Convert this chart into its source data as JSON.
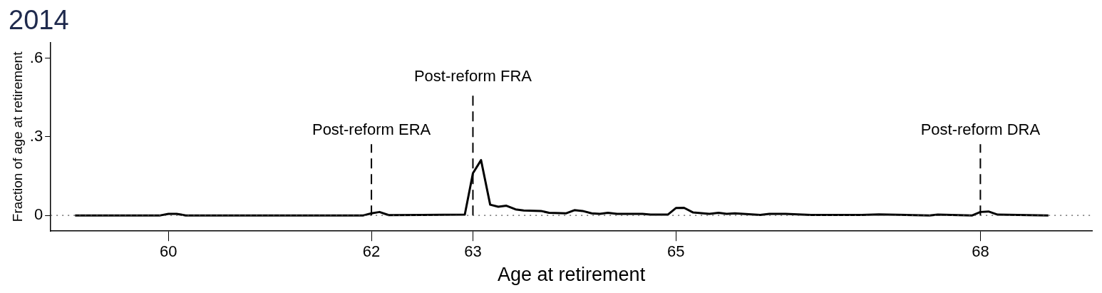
{
  "chart_data": {
    "type": "line",
    "title": "2014",
    "xlabel": "Age at retirement",
    "ylabel": "Fraction of age at retirement",
    "color": "#000000",
    "x": [
      59.08,
      59.92,
      60.0,
      60.08,
      60.17,
      61.92,
      62.0,
      62.08,
      62.17,
      62.5,
      62.92,
      63.0,
      63.08,
      63.17,
      63.25,
      63.33,
      63.42,
      63.5,
      63.67,
      63.75,
      63.92,
      64.0,
      64.08,
      64.17,
      64.25,
      64.33,
      64.42,
      64.67,
      64.75,
      64.92,
      65.0,
      65.08,
      65.17,
      65.33,
      65.42,
      65.5,
      65.58,
      65.83,
      65.92,
      66.08,
      66.33,
      66.83,
      67.0,
      67.5,
      67.58,
      67.92,
      68.0,
      68.08,
      68.17,
      68.67
    ],
    "values": [
      0,
      0,
      0.006,
      0.006,
      0,
      0,
      0.008,
      0.013,
      0.001,
      0.002,
      0.003,
      0.161,
      0.211,
      0.041,
      0.033,
      0.037,
      0.023,
      0.019,
      0.017,
      0.01,
      0.008,
      0.02,
      0.017,
      0.008,
      0.006,
      0.01,
      0.006,
      0.006,
      0.003,
      0.003,
      0.028,
      0.029,
      0.011,
      0.006,
      0.01,
      0.006,
      0.008,
      0.002,
      0.006,
      0.006,
      0.002,
      0.002,
      0.004,
      0,
      0.003,
      0,
      0.013,
      0.015,
      0.003,
      0
    ],
    "xlim": [
      58.84,
      69.1
    ],
    "xticks": [
      60,
      62,
      63,
      65,
      68
    ],
    "ylim": [
      -0.06,
      0.66
    ],
    "yticks": [
      0,
      {
        "value": 0.3,
        "label": ".3"
      },
      {
        "value": 0.6,
        "label": ".6"
      }
    ],
    "grid": false,
    "legend": false,
    "marker": "none",
    "line_style": "solid",
    "ref_lines": [
      {
        "axis": "x",
        "value": 62,
        "label": "Post-reform ERA",
        "line_style": "dashed",
        "color": "#000000"
      },
      {
        "axis": "x",
        "value": 63,
        "label": "Post-reform FRA",
        "line_style": "dashed",
        "color": "#000000"
      },
      {
        "axis": "x",
        "value": 68,
        "label": "Post-reform DRA",
        "line_style": "dashed",
        "color": "#000000"
      },
      {
        "axis": "y",
        "value": 0,
        "line_style": "dotted",
        "color": "#555555"
      }
    ]
  }
}
